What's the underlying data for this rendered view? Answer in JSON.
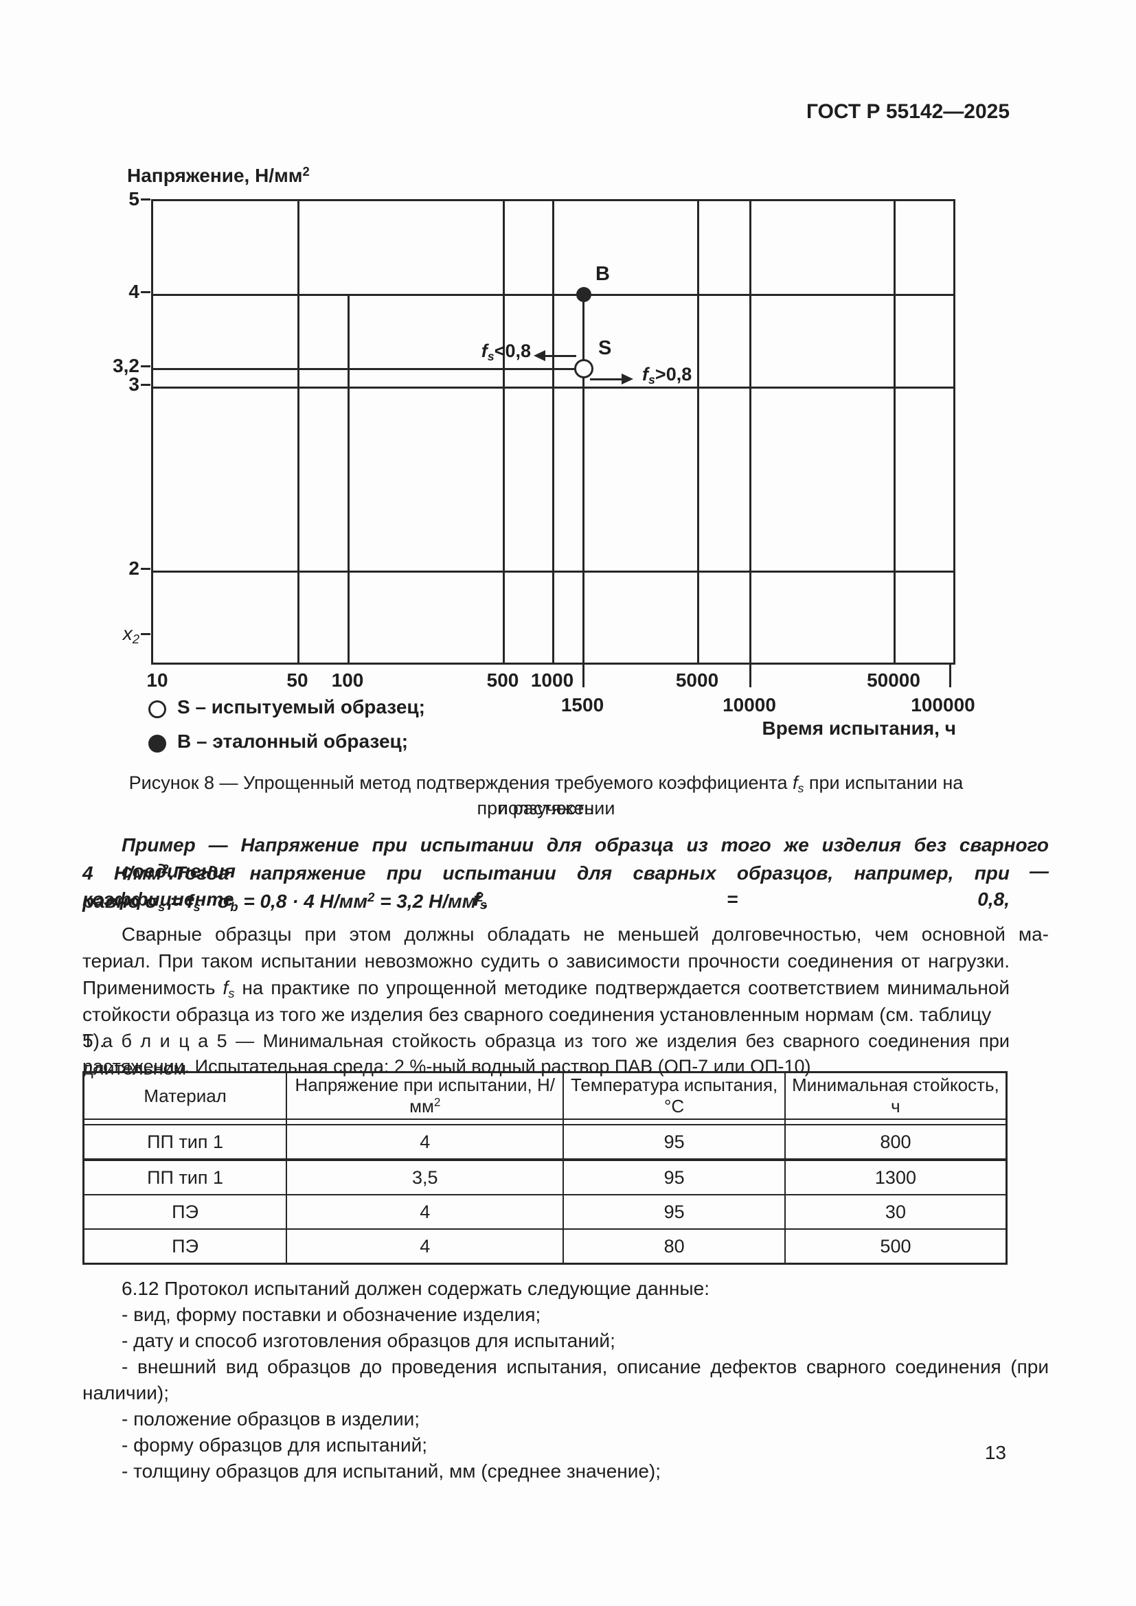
{
  "page": {
    "standard_ref": "ГОСТ Р 55142—2025",
    "number": "13"
  },
  "chart": {
    "y_axis_title": [
      [
        "",
        "Напряжение, Н/мм"
      ],
      [
        "sup",
        "2"
      ]
    ],
    "x_axis_title": "Время испытания, ч",
    "y_ticks": {
      "t5": "5",
      "t4": "4",
      "t32": "3,2",
      "t3": "3",
      "t2": "2"
    },
    "x2_label": [
      [
        "i",
        "x"
      ],
      [
        "isub",
        "2"
      ]
    ],
    "x_ticks": {
      "t10": "10",
      "t50": "50",
      "t100": "100",
      "t500": "500",
      "t1000": "1000",
      "t1500": "1500",
      "t5000": "5000",
      "t10000": "10000",
      "t50000": "50000",
      "t100000": "100000"
    },
    "point_b_label": "B",
    "point_s_label": "S",
    "ann_left": [
      [
        "i",
        "f"
      ],
      [
        "isub",
        "s"
      ],
      [
        "",
        "<0,8"
      ]
    ],
    "ann_right": [
      [
        "i",
        "f"
      ],
      [
        "isub",
        "s"
      ],
      [
        "",
        ">0,8"
      ]
    ],
    "legend": {
      "item_s": "S – испытуемый образец;",
      "item_b": "B – эталонный образец;"
    }
  },
  "chart_data": {
    "type": "scatter",
    "xlabel": "Время испытания, ч",
    "ylabel": "Напряжение, Н/мм2",
    "x_scale": "log",
    "y_scale": "log",
    "xlim": [
      10,
      100000
    ],
    "x_gridlines": [
      10,
      50,
      100,
      500,
      1000,
      5000,
      10000,
      50000,
      100000
    ],
    "y_gridlines": [
      5,
      4,
      3.2,
      3,
      2
    ],
    "y_tick_labels": [
      "5",
      "4",
      "3,2",
      "3",
      "2",
      "x2"
    ],
    "points": [
      {
        "name": "B",
        "x": 1500,
        "y": 4,
        "marker": "filled-circle",
        "meaning": "эталонный образец"
      },
      {
        "name": "S",
        "x": 1500,
        "y": 3.2,
        "marker": "open-circle",
        "meaning": "испытуемый образец"
      }
    ],
    "annotations": [
      {
        "text": "fs<0,8",
        "arrow": "left",
        "at": [
          1500,
          3.3
        ]
      },
      {
        "text": "fs>0,8",
        "arrow": "right",
        "at": [
          1500,
          3.1
        ]
      }
    ],
    "grid": true,
    "legend_position": "below-left"
  },
  "caption": {
    "line1": [
      [
        "",
        "Рисунок 8 — Упрощенный метод подтверждения требуемого коэффициента "
      ],
      [
        "i",
        "f"
      ],
      [
        "isub",
        "s"
      ],
      [
        "",
        " при испытании на ползучесть"
      ]
    ],
    "line2": "при растяжении"
  },
  "example": {
    "line1": [
      [
        "",
        "Пример — Напряжение при испытании для образца из того же изделия без сварного соединения —"
      ]
    ],
    "line2": [
      [
        "",
        "4 Н/мм"
      ],
      [
        "sup",
        "2"
      ],
      [
        "",
        ".Тогда напряжение при испытании для сварных образцов, например, при коэффициенте "
      ],
      [
        "i",
        "f"
      ],
      [
        "isub",
        "s"
      ],
      [
        "",
        " = 0,8,"
      ]
    ],
    "line3": [
      [
        "",
        "равно "
      ],
      [
        "i",
        "σ"
      ],
      [
        "isub",
        "s"
      ],
      [
        "",
        " = "
      ],
      [
        "i",
        "f"
      ],
      [
        "isub",
        "s"
      ],
      [
        "",
        " · "
      ],
      [
        "i",
        "σ"
      ],
      [
        "isub",
        "b"
      ],
      [
        "",
        " = 0,8 · 4 Н/мм"
      ],
      [
        "sup",
        "2"
      ],
      [
        "",
        " = 3,2 Н/мм"
      ],
      [
        "sup",
        "2"
      ],
      [
        "",
        "."
      ]
    ]
  },
  "paragraph": {
    "line1": "Сварные образцы при этом должны обладать не меньшей долговечностью, чем основной ма-",
    "line2": "териал. При таком испытании невозможно судить о зависимости прочности соединения от нагрузки.",
    "line3": [
      [
        "",
        "Применимость "
      ],
      [
        "i",
        "f"
      ],
      [
        "isub",
        "s"
      ],
      [
        "",
        " на практике по упрощенной методике подтверждается соответствием минимальной"
      ]
    ],
    "line4": "стойкости образца из того же изделия без сварного соединения установленным нормам (см. таблицу 5)."
  },
  "table5": {
    "heading_line1": "Т а б л и ц а   5 — Минимальная стойкость образца из того же изделия без сварного соединения при длительном",
    "heading_line2": "растяжении. Испытательная среда: 2 %-ный водный раствор ПАВ (ОП-7 или ОП-10)",
    "col1": "Материал",
    "col2": [
      [
        "",
        "Напряжение при испытании, Н/мм"
      ],
      [
        "sup",
        "2"
      ]
    ],
    "col3": "Температура испытания, °С",
    "col4": "Минимальная стойкость, ч",
    "rows": [
      {
        "material": "ПП тип 1",
        "stress": "4",
        "temp": "95",
        "endurance": "800"
      },
      {
        "material": "ПП тип 1",
        "stress": "3,5",
        "temp": "95",
        "endurance": "1300"
      },
      {
        "material": "ПЭ",
        "stress": "4",
        "temp": "95",
        "endurance": "30"
      },
      {
        "material": "ПЭ",
        "stress": "4",
        "temp": "80",
        "endurance": "500"
      }
    ]
  },
  "section612": {
    "intro": "6.12 Протокол испытаний должен содержать следующие данные:",
    "item1": "- вид, форму поставки и обозначение изделия;",
    "item2": "- дату и способ изготовления образцов для испытаний;",
    "item3a": "- внешний вид образцов до проведения испытания, описание дефектов сварного соединения (при",
    "item3b": "наличии);",
    "item4": "- положение образцов в изделии;",
    "item5": "- форму образцов для испытаний;",
    "item6": "- толщину образцов для испытаний, мм (среднее значение);"
  }
}
